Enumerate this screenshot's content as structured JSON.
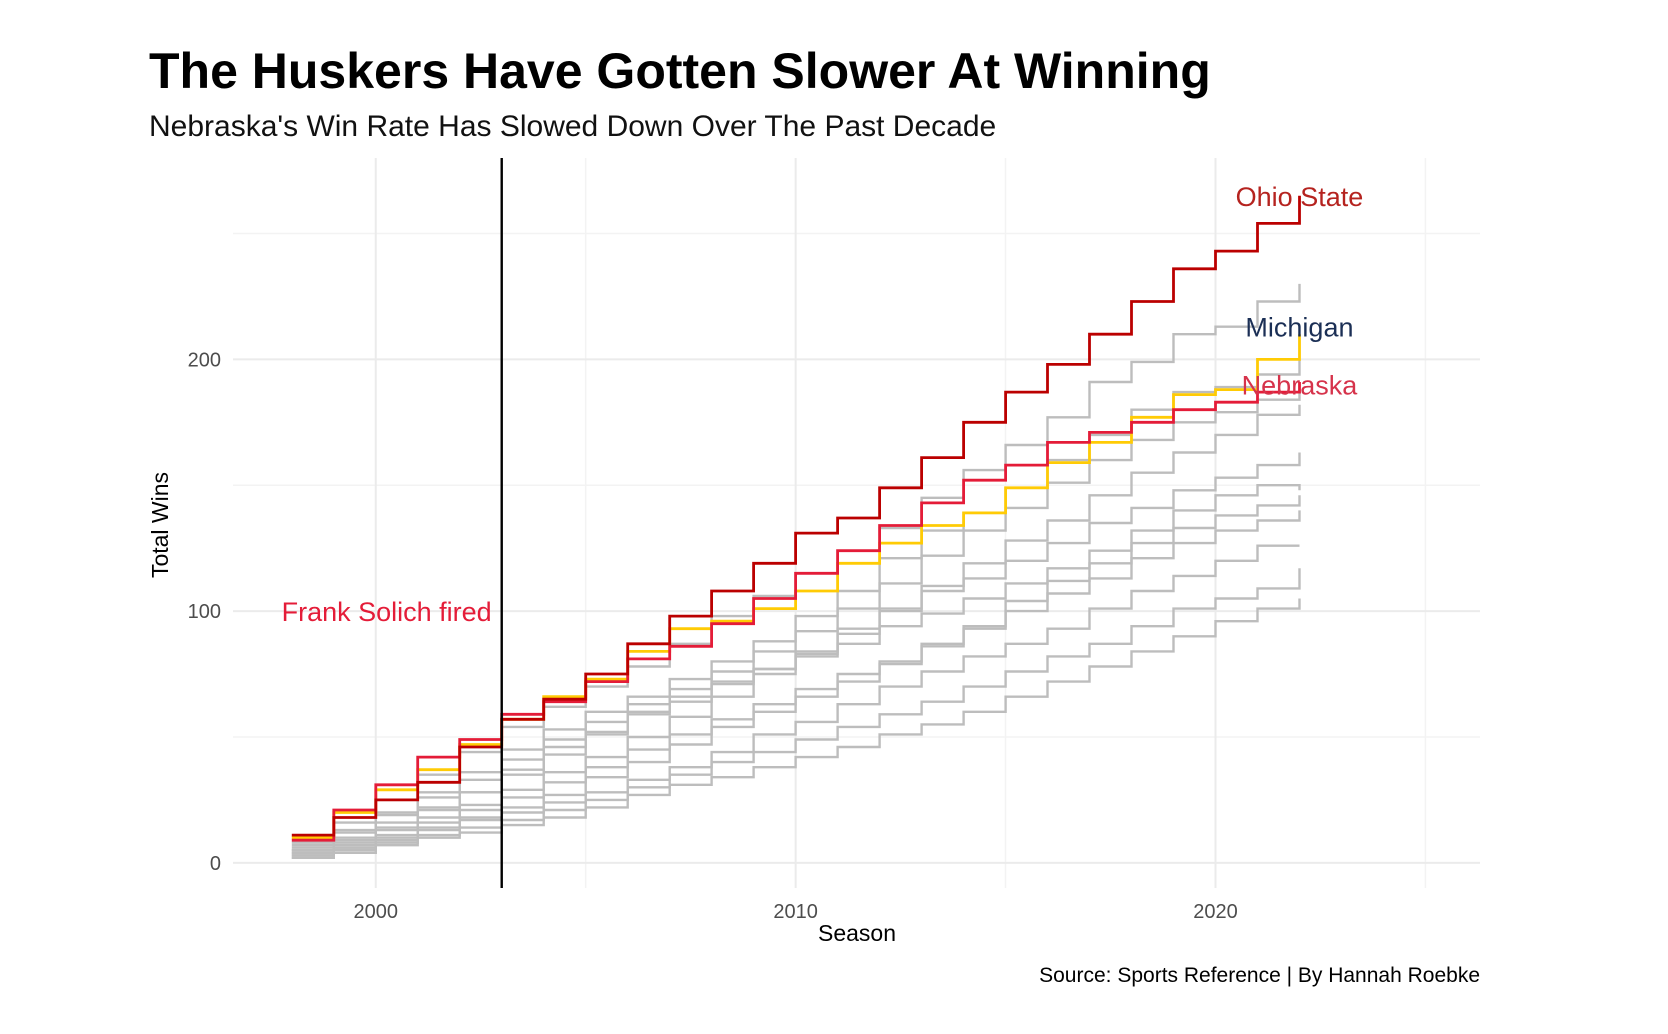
{
  "chart_data": {
    "type": "line",
    "step": true,
    "title": "The Huskers Have Gotten Slower At Winning",
    "subtitle": "Nebraska's Win Rate Has Slowed Down Over The Past Decade",
    "xlabel": "Season",
    "ylabel": "Total Wins",
    "caption": "Source: Sports Reference | By Hannah Roebke",
    "xlim": [
      1996.6,
      2026.3
    ],
    "ylim": [
      -10,
      280
    ],
    "x_ticks": [
      2000,
      2010,
      2020
    ],
    "x_tick_labels": [
      "2000",
      "2010",
      "2020"
    ],
    "y_ticks": [
      0,
      100,
      200
    ],
    "y_tick_labels": [
      "0",
      "100",
      "200"
    ],
    "grid": true,
    "legend": "none",
    "colors": {
      "ohio_state": "#bb0000",
      "michigan_line": "#ffcb05",
      "michigan_label": "#00274c",
      "nebraska": "#e41c38",
      "other": "#bdbdbd",
      "reference_line": "#000000"
    },
    "reference_line": {
      "x": 2003,
      "label": "Frank Solich fired",
      "label_y": 100
    },
    "x": [
      1998,
      1999,
      2000,
      2001,
      2002,
      2003,
      2004,
      2005,
      2006,
      2007,
      2008,
      2009,
      2010,
      2011,
      2012,
      2013,
      2014,
      2015,
      2016,
      2017,
      2018,
      2019,
      2020,
      2021,
      2022
    ],
    "series": [
      {
        "name": "Ohio State",
        "highlight": true,
        "values": [
          11,
          18,
          25,
          32,
          46,
          57,
          65,
          75,
          87,
          98,
          108,
          119,
          131,
          137,
          149,
          161,
          175,
          187,
          198,
          210,
          223,
          236,
          243,
          254,
          265
        ]
      },
      {
        "name": "Michigan",
        "highlight": true,
        "values": [
          10,
          20,
          29,
          37,
          47,
          57,
          66,
          73,
          84,
          93,
          96,
          101,
          108,
          119,
          127,
          134,
          139,
          149,
          159,
          167,
          177,
          186,
          188,
          200,
          210
        ]
      },
      {
        "name": "Nebraska",
        "highlight": true,
        "values": [
          9,
          21,
          31,
          42,
          49,
          59,
          64,
          72,
          81,
          86,
          95,
          105,
          115,
          124,
          134,
          143,
          152,
          158,
          167,
          171,
          175,
          180,
          183,
          187,
          191
        ]
      },
      {
        "name": "",
        "values": [
          8,
          16,
          25,
          35,
          44,
          54,
          62,
          70,
          78,
          87,
          98,
          106,
          115,
          124,
          133,
          145,
          156,
          166,
          177,
          191,
          199,
          210,
          213,
          223,
          230
        ]
      },
      {
        "name": "",
        "values": [
          7,
          13,
          20,
          28,
          36,
          45,
          53,
          60,
          66,
          73,
          80,
          88,
          98,
          108,
          121,
          132,
          139,
          149,
          160,
          170,
          180,
          187,
          189,
          194,
          200
        ]
      },
      {
        "name": "",
        "values": [
          6,
          12,
          19,
          26,
          33,
          41,
          49,
          56,
          63,
          69,
          76,
          84,
          92,
          101,
          111,
          122,
          132,
          141,
          151,
          160,
          168,
          175,
          179,
          184,
          187
        ]
      },
      {
        "name": "",
        "values": [
          5,
          10,
          16,
          22,
          28,
          35,
          43,
          51,
          59,
          64,
          71,
          77,
          83,
          91,
          100,
          110,
          119,
          128,
          136,
          146,
          155,
          163,
          170,
          178,
          182
        ]
      },
      {
        "name": "",
        "values": [
          5,
          9,
          14,
          21,
          28,
          37,
          46,
          52,
          60,
          66,
          72,
          77,
          84,
          93,
          101,
          108,
          113,
          120,
          127,
          135,
          141,
          148,
          153,
          158,
          163
        ]
      },
      {
        "name": "",
        "values": [
          4,
          8,
          13,
          18,
          23,
          29,
          36,
          42,
          50,
          58,
          66,
          75,
          82,
          87,
          94,
          99,
          105,
          111,
          117,
          124,
          132,
          140,
          146,
          150,
          148
        ]
      },
      {
        "name": "",
        "values": [
          4,
          7,
          11,
          16,
          21,
          26,
          32,
          38,
          45,
          51,
          57,
          63,
          69,
          75,
          80,
          87,
          94,
          104,
          112,
          119,
          127,
          133,
          138,
          142,
          146
        ]
      },
      {
        "name": "",
        "values": [
          3,
          6,
          10,
          14,
          18,
          22,
          27,
          34,
          40,
          47,
          54,
          60,
          66,
          72,
          79,
          86,
          93,
          100,
          107,
          113,
          121,
          127,
          132,
          136,
          140
        ]
      },
      {
        "name": "",
        "values": [
          3,
          6,
          9,
          13,
          17,
          20,
          24,
          28,
          33,
          38,
          44,
          51,
          56,
          63,
          70,
          76,
          82,
          87,
          93,
          101,
          108,
          114,
          120,
          126,
          126
        ]
      },
      {
        "name": "",
        "values": [
          2,
          5,
          8,
          11,
          14,
          17,
          21,
          25,
          30,
          35,
          40,
          44,
          49,
          54,
          59,
          64,
          70,
          76,
          82,
          87,
          94,
          101,
          105,
          109,
          117
        ]
      },
      {
        "name": "",
        "values": [
          2,
          4,
          7,
          10,
          12,
          15,
          18,
          22,
          27,
          31,
          34,
          38,
          42,
          46,
          51,
          55,
          60,
          66,
          72,
          78,
          84,
          90,
          96,
          101,
          105
        ]
      }
    ],
    "series_labels": [
      {
        "text": "Ohio State",
        "x": 2022,
        "y": 265,
        "color": "#b5231f"
      },
      {
        "text": "Michigan",
        "x": 2022,
        "y": 213,
        "color": "#1b2f55"
      },
      {
        "text": "Nebraska",
        "x": 2022,
        "y": 190,
        "color": "#d6334b"
      }
    ]
  }
}
